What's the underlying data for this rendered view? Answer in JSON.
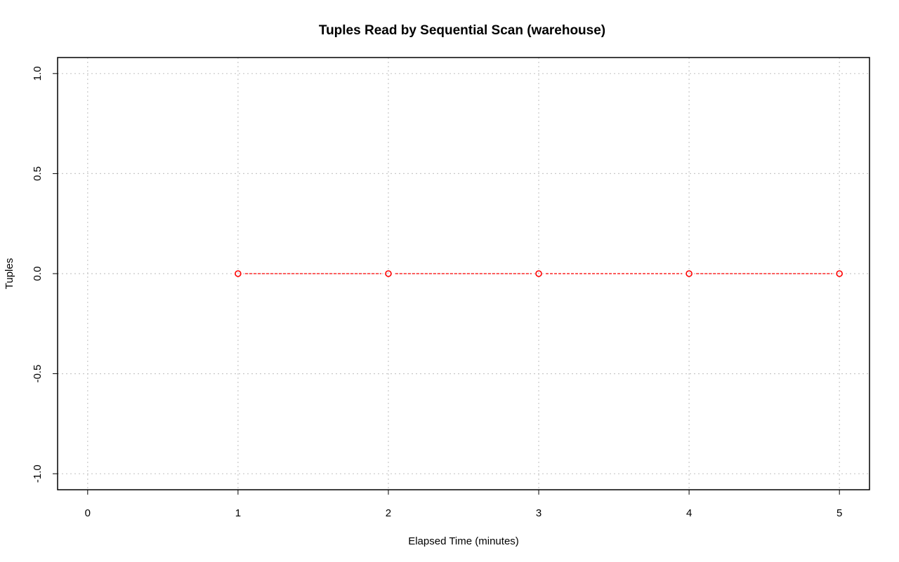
{
  "chart_data": {
    "type": "line",
    "title": "Tuples Read by Sequential Scan (warehouse)",
    "xlabel": "Elapsed Time (minutes)",
    "ylabel": "Tuples",
    "xlim": [
      -0.2,
      5.2
    ],
    "ylim": [
      -1.08,
      1.08
    ],
    "x_ticks": [
      0,
      1,
      2,
      3,
      4,
      5
    ],
    "x_tick_labels": [
      "0",
      "1",
      "2",
      "3",
      "4",
      "5"
    ],
    "y_ticks": [
      -1.0,
      -0.5,
      0.0,
      0.5,
      1.0
    ],
    "y_tick_labels": [
      "-1.0",
      "-0.5",
      "0.0",
      "0.5",
      "1.0"
    ],
    "grid": true,
    "legend": "none",
    "series": [
      {
        "x": [
          1,
          2,
          3,
          4,
          5
        ],
        "values": [
          0,
          0,
          0,
          0,
          0
        ],
        "color": "#ff0000",
        "line_style": "dashed",
        "marker": "open-circle"
      }
    ],
    "colors": {
      "grid": "#c8c8c8",
      "frame": "#000000",
      "background": "#ffffff"
    }
  }
}
